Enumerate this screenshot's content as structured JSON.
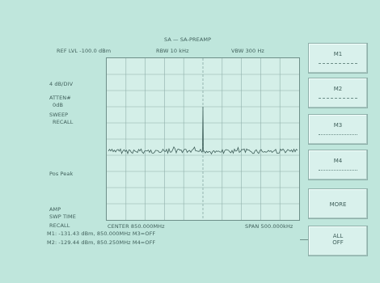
{
  "title": "SA — SA-PREAMP",
  "header": {
    "ref_level": "REF LVL -100.0 dBm",
    "rbw": "RBW 10 kHz",
    "vbw": "VBW 300 Hz"
  },
  "left_labels": {
    "scale": "4 dB/DIV",
    "atten": "ATTEN#",
    "atten_value": "0dB",
    "sweep": "SWEEP",
    "sweep_recall": "RECALL",
    "pos_peak": "Pos Peak",
    "amp": "AMP",
    "swp_time": "SWP TIME",
    "recall": "RECALL"
  },
  "footer": {
    "center": "CENTER 850.000MHz",
    "span": "SPAN 500.000kHz",
    "marker_line1": "M1: -131.43 dBm, 850.000MHz   M3=OFF",
    "marker_line2": "M2: -129.44 dBm, 850.250MHz   M4=OFF"
  },
  "softkeys": [
    {
      "label": "M1"
    },
    {
      "label": "M2"
    },
    {
      "label": "M3"
    },
    {
      "label": "M4"
    },
    {
      "label": "MORE"
    },
    {
      "label_line1": "ALL",
      "label_line2": "OFF"
    }
  ],
  "colors": {
    "background": "#bfe6dc",
    "plot_background": "#d4efe8",
    "trace": "#3f5f5a"
  }
}
